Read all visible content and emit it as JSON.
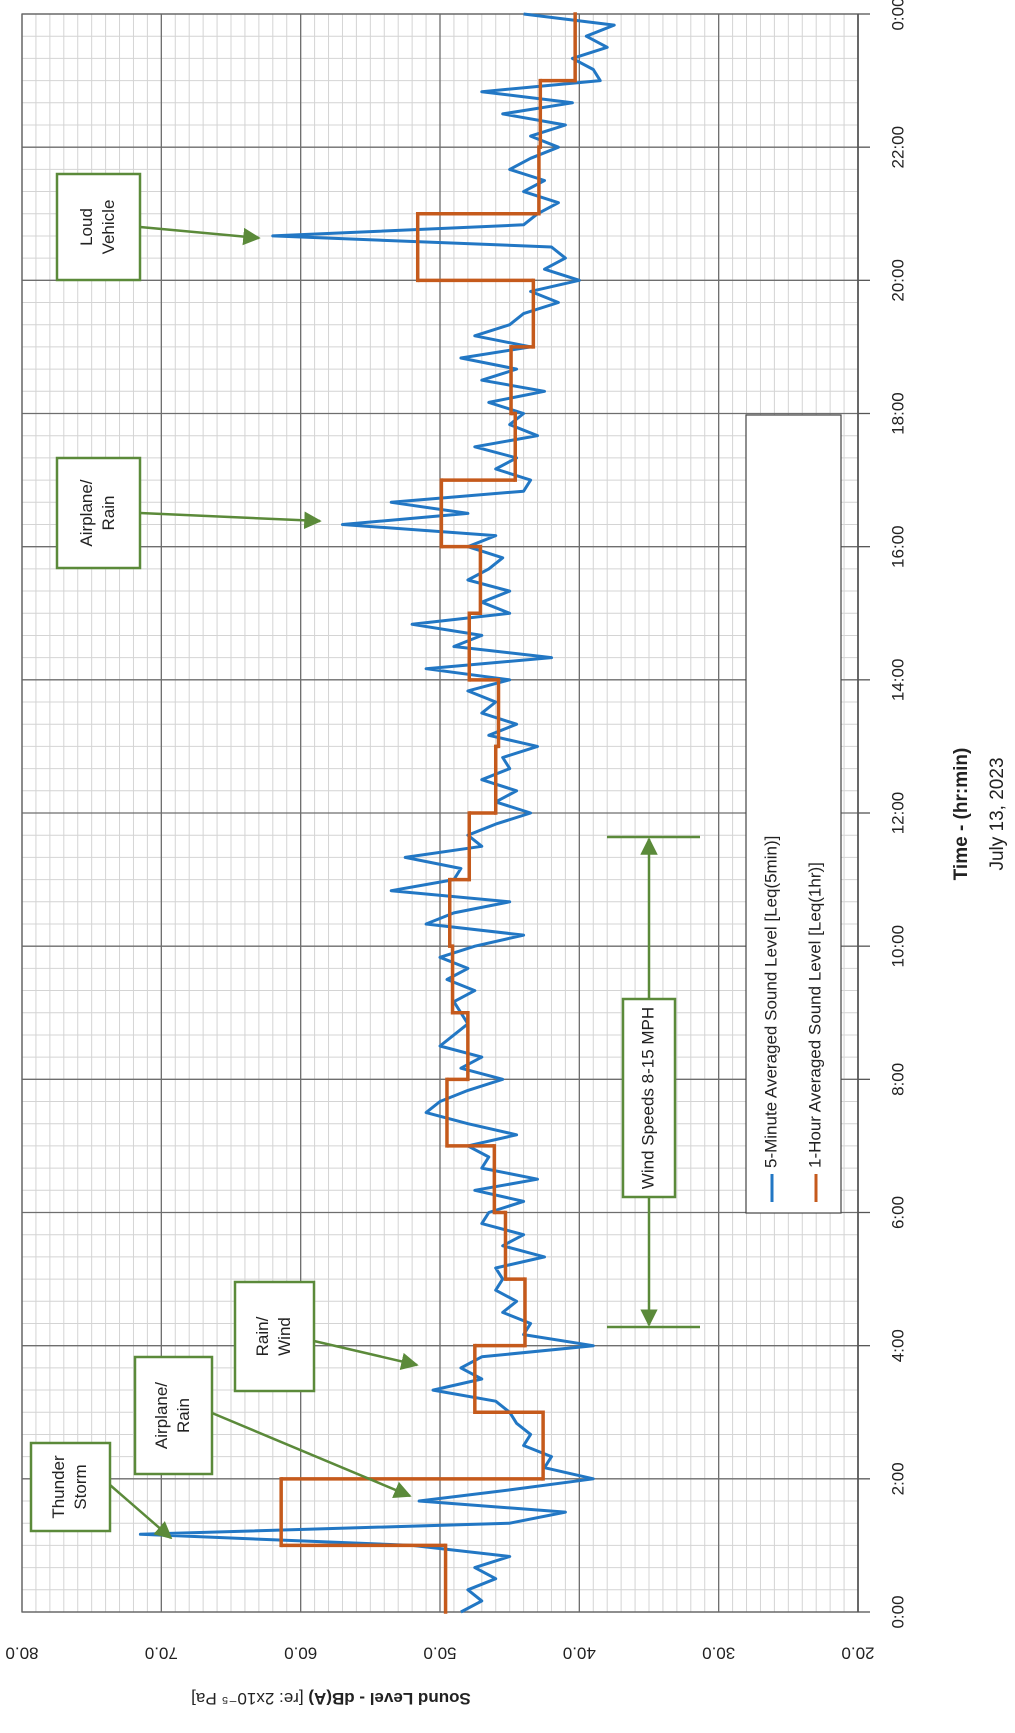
{
  "chart_data": {
    "type": "line",
    "y_label": "Sound Level - dB(A)",
    "y_label_note": " [re: 2x10⁻⁵ Pa]",
    "x_label": "Time - (hr:min)",
    "x_sublabel": "July 13, 2023",
    "xlim": [
      0,
      1440
    ],
    "xticks": [
      {
        "value": 0,
        "label": "0:00"
      },
      {
        "value": 120,
        "label": "2:00"
      },
      {
        "value": 240,
        "label": "4:00"
      },
      {
        "value": 360,
        "label": "6:00"
      },
      {
        "value": 480,
        "label": "8:00"
      },
      {
        "value": 600,
        "label": "10:00"
      },
      {
        "value": 720,
        "label": "12:00"
      },
      {
        "value": 840,
        "label": "14:00"
      },
      {
        "value": 960,
        "label": "16:00"
      },
      {
        "value": 1080,
        "label": "18:00"
      },
      {
        "value": 1200,
        "label": "20:00"
      },
      {
        "value": 1320,
        "label": "22:00"
      },
      {
        "value": 1440,
        "label": "0:00"
      }
    ],
    "ylim": [
      20,
      80
    ],
    "yticks": [
      {
        "value": 80,
        "label": "80.0"
      },
      {
        "value": 70,
        "label": "70.0"
      },
      {
        "value": 60,
        "label": "60.0"
      },
      {
        "value": 50,
        "label": "50.0"
      },
      {
        "value": 40,
        "label": "40.0"
      },
      {
        "value": 30,
        "label": "30.0"
      },
      {
        "value": 20,
        "label": "20.0"
      }
    ],
    "grid": true,
    "series": [
      {
        "name": "5-Minute Averaged Sound Level [Leq(5min)]",
        "color": "#2277c4",
        "x": [
          0,
          10,
          20,
          30,
          40,
          50,
          60,
          70,
          80,
          90,
          100,
          110,
          120,
          130,
          140,
          150,
          160,
          170,
          180,
          190,
          200,
          210,
          220,
          230,
          240,
          250,
          260,
          270,
          280,
          290,
          300,
          310,
          320,
          330,
          340,
          350,
          360,
          370,
          380,
          390,
          400,
          410,
          420,
          430,
          440,
          450,
          460,
          470,
          480,
          490,
          500,
          510,
          520,
          530,
          540,
          550,
          560,
          570,
          580,
          590,
          600,
          610,
          620,
          630,
          640,
          650,
          660,
          670,
          680,
          690,
          700,
          710,
          720,
          730,
          740,
          750,
          760,
          770,
          780,
          790,
          800,
          810,
          820,
          830,
          840,
          850,
          860,
          870,
          880,
          890,
          900,
          910,
          920,
          930,
          940,
          950,
          960,
          970,
          980,
          990,
          1000,
          1010,
          1020,
          1030,
          1040,
          1050,
          1060,
          1070,
          1080,
          1090,
          1100,
          1110,
          1120,
          1130,
          1140,
          1150,
          1160,
          1170,
          1180,
          1190,
          1200,
          1210,
          1220,
          1230,
          1240,
          1250,
          1260,
          1270,
          1280,
          1290,
          1300,
          1310,
          1320,
          1330,
          1340,
          1350,
          1360,
          1370,
          1380,
          1390,
          1400,
          1410,
          1420,
          1430,
          1440
        ],
        "values": [
          48.5,
          47,
          48,
          46,
          47.5,
          45,
          52,
          71.5,
          45,
          41,
          51.5,
          45,
          39,
          42.5,
          42,
          44,
          43.5,
          44.5,
          45,
          46,
          50.5,
          47,
          48.5,
          47,
          39,
          44,
          43.5,
          45.5,
          44.5,
          46,
          45.5,
          46,
          42.5,
          45.5,
          44,
          47,
          46.5,
          44,
          47.5,
          43,
          47,
          46.5,
          48,
          44.5,
          48,
          51,
          50,
          48,
          45.5,
          48.5,
          47,
          50,
          49,
          48,
          48.5,
          49,
          47.5,
          49.5,
          48,
          50,
          47.5,
          44,
          51,
          49,
          45,
          53.5,
          49,
          48.5,
          52.5,
          47,
          48,
          46,
          43.5,
          46,
          44.5,
          47,
          45,
          45.5,
          43,
          46.5,
          44.5,
          47,
          46,
          48,
          45,
          51,
          42,
          49,
          47,
          52,
          45,
          47,
          45,
          48,
          46.5,
          45.5,
          48,
          46,
          57,
          48,
          53.5,
          44,
          43.5,
          46,
          44.5,
          47.5,
          43,
          45,
          44,
          46.5,
          42.5,
          47,
          44.5,
          48.5,
          43.5,
          47.5,
          45,
          44,
          41.5,
          43.5,
          40,
          42.5,
          41,
          42,
          62,
          44,
          43,
          41.5,
          44,
          42.5,
          45,
          43.5,
          41.5,
          43.5,
          41,
          45.5,
          40.5,
          47,
          38.5,
          39,
          40.5,
          38,
          39.5,
          37.5,
          44
        ]
      },
      {
        "name": "1-Hour Averaged Sound Level [Leq(1hr)]",
        "color": "#c55a1c",
        "x": [
          0,
          60,
          120,
          180,
          240,
          300,
          360,
          420,
          480,
          540,
          600,
          660,
          720,
          780,
          840,
          900,
          960,
          1020,
          1080,
          1140,
          1200,
          1260,
          1320,
          1380
        ],
        "values": [
          49.6,
          61.4,
          42.6,
          47.5,
          43.9,
          45.3,
          46.1,
          49.5,
          48.0,
          49.1,
          49.3,
          47.9,
          46.0,
          45.8,
          47.9,
          47.1,
          49.9,
          44.6,
          44.9,
          43.3,
          51.6,
          42.9,
          42.8,
          40.3
        ]
      }
    ],
    "annotations": [
      {
        "lines": [
          "Thunder",
          "Storm"
        ]
      },
      {
        "lines": [
          "Airplane/",
          "Rain"
        ]
      },
      {
        "lines": [
          "Rain/",
          "Wind"
        ]
      },
      {
        "lines": [
          "Airplane/",
          "Rain"
        ]
      },
      {
        "lines": [
          "Loud",
          "Vehicle"
        ]
      },
      {
        "lines": [
          "Wind Speeds 8-15 MPH"
        ]
      }
    ]
  }
}
